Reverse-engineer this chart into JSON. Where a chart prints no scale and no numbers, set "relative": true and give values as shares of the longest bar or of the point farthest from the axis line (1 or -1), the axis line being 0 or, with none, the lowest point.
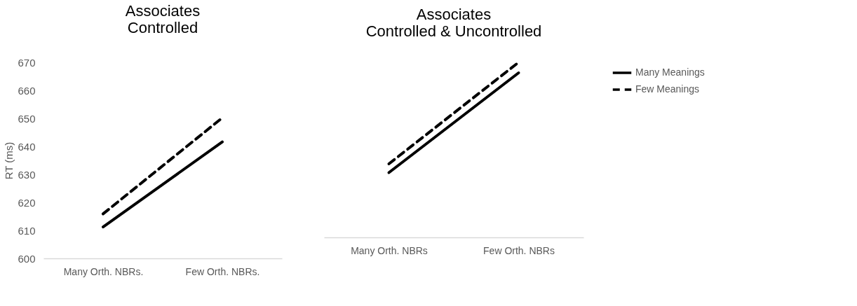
{
  "chart_data": [
    {
      "type": "line",
      "title": "Associates\nControlled",
      "ylabel": "RT (ms)",
      "categories": [
        "Many Orth. NBRs.",
        "Few Orth. NBRs."
      ],
      "ylim": [
        600,
        670
      ],
      "yticks": [
        600,
        610,
        620,
        630,
        640,
        650,
        660,
        670
      ],
      "grid": false,
      "legend": false,
      "series": [
        {
          "color": "#000000",
          "line_style": "solid",
          "values": [
            611.2,
            641.6
          ]
        },
        {
          "color": "#000000",
          "line_style": "dashed",
          "values": [
            615.9,
            650.2
          ]
        }
      ]
    },
    {
      "type": "line",
      "title": "Associates\nControlled & Uncontrolled",
      "categories": [
        "Many Orth. NBRs",
        "Few Orth. NBRs"
      ],
      "relative": true,
      "grid": false,
      "legend": "right",
      "series": [
        {
          "name": "Many Meanings",
          "color": "#000000",
          "line_style": "solid",
          "values": [
            0.37,
            0.94
          ]
        },
        {
          "name": "Few Meanings",
          "color": "#000000",
          "line_style": "dashed",
          "values": [
            0.42,
            1.0
          ]
        }
      ]
    }
  ]
}
